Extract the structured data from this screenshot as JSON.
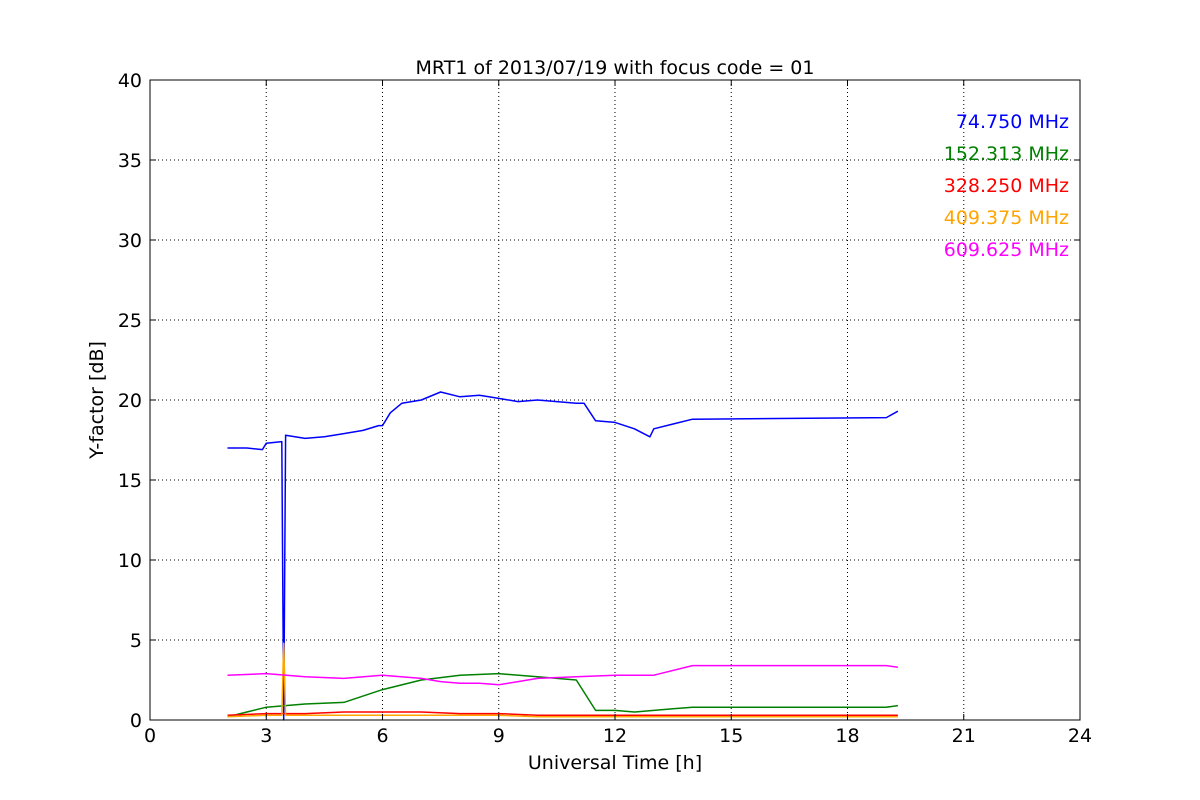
{
  "chart_data": {
    "type": "line",
    "title": "MRT1 of 2013/07/19 with focus code = 01",
    "xlabel": "Universal Time [h]",
    "ylabel": "Y-factor [dB]",
    "xlim": [
      0,
      24
    ],
    "ylim": [
      0,
      40
    ],
    "x_ticks": [
      0,
      3,
      6,
      9,
      12,
      15,
      18,
      21,
      24
    ],
    "y_ticks": [
      0,
      5,
      10,
      15,
      20,
      25,
      30,
      35,
      40
    ],
    "grid": true,
    "legend_placement": "top-right",
    "series": [
      {
        "name": "74.750 MHz",
        "color": "#0000ff",
        "x": [
          2.0,
          2.5,
          2.9,
          3.0,
          3.4,
          3.45,
          3.5,
          4.0,
          4.5,
          5.0,
          5.5,
          5.9,
          6.0,
          6.2,
          6.5,
          7.0,
          7.5,
          8.0,
          8.5,
          9.0,
          9.5,
          10.0,
          10.5,
          11.0,
          11.2,
          11.5,
          12.0,
          12.5,
          12.9,
          13.0,
          13.5,
          14.0,
          19.0,
          19.3
        ],
        "y": [
          17.0,
          17.0,
          16.9,
          17.3,
          17.4,
          0.0,
          17.8,
          17.6,
          17.7,
          17.9,
          18.1,
          18.4,
          18.4,
          19.2,
          19.8,
          20.0,
          20.5,
          20.2,
          20.3,
          20.1,
          19.9,
          20.0,
          19.9,
          19.8,
          19.8,
          18.7,
          18.6,
          18.2,
          17.7,
          18.2,
          18.5,
          18.8,
          18.9,
          19.3
        ]
      },
      {
        "name": "152.313 MHz",
        "color": "#008000",
        "x": [
          2.0,
          2.5,
          3.0,
          3.5,
          4.0,
          5.0,
          6.0,
          7.0,
          8.0,
          9.0,
          10.0,
          11.0,
          11.5,
          12.0,
          12.5,
          13.0,
          13.5,
          14.0,
          19.0,
          19.3
        ],
        "y": [
          0.2,
          0.5,
          0.8,
          0.9,
          1.0,
          1.1,
          1.9,
          2.5,
          2.8,
          2.9,
          2.7,
          2.5,
          0.6,
          0.6,
          0.5,
          0.6,
          0.7,
          0.8,
          0.8,
          0.9
        ]
      },
      {
        "name": "328.250 MHz",
        "color": "#ff0000",
        "x": [
          2.0,
          3.0,
          4.0,
          5.0,
          6.0,
          7.0,
          8.0,
          9.0,
          10.0,
          11.0,
          12.0,
          13.0,
          14.0,
          19.0,
          19.3
        ],
        "y": [
          0.3,
          0.4,
          0.4,
          0.5,
          0.5,
          0.5,
          0.4,
          0.4,
          0.3,
          0.3,
          0.3,
          0.3,
          0.3,
          0.3,
          0.3
        ]
      },
      {
        "name": "409.375 MHz",
        "color": "#ffa500",
        "x": [
          2.0,
          3.0,
          3.4,
          3.45,
          3.5,
          4.0,
          5.0,
          6.0,
          7.0,
          8.0,
          9.0,
          10.0,
          11.0,
          12.0,
          13.0,
          14.0,
          19.0,
          19.3
        ],
        "y": [
          0.2,
          0.3,
          0.3,
          4.8,
          0.3,
          0.3,
          0.3,
          0.3,
          0.3,
          0.3,
          0.3,
          0.2,
          0.2,
          0.2,
          0.2,
          0.2,
          0.2,
          0.2
        ]
      },
      {
        "name": "609.625 MHz",
        "color": "#ff00ff",
        "x": [
          2.0,
          3.0,
          4.0,
          5.0,
          6.0,
          7.0,
          7.5,
          8.0,
          8.5,
          9.0,
          9.5,
          10.0,
          11.0,
          12.0,
          13.0,
          14.0,
          19.0,
          19.3
        ],
        "y": [
          2.8,
          2.9,
          2.7,
          2.6,
          2.8,
          2.6,
          2.4,
          2.3,
          2.3,
          2.2,
          2.4,
          2.6,
          2.7,
          2.8,
          2.8,
          3.4,
          3.4,
          3.3
        ]
      }
    ]
  }
}
